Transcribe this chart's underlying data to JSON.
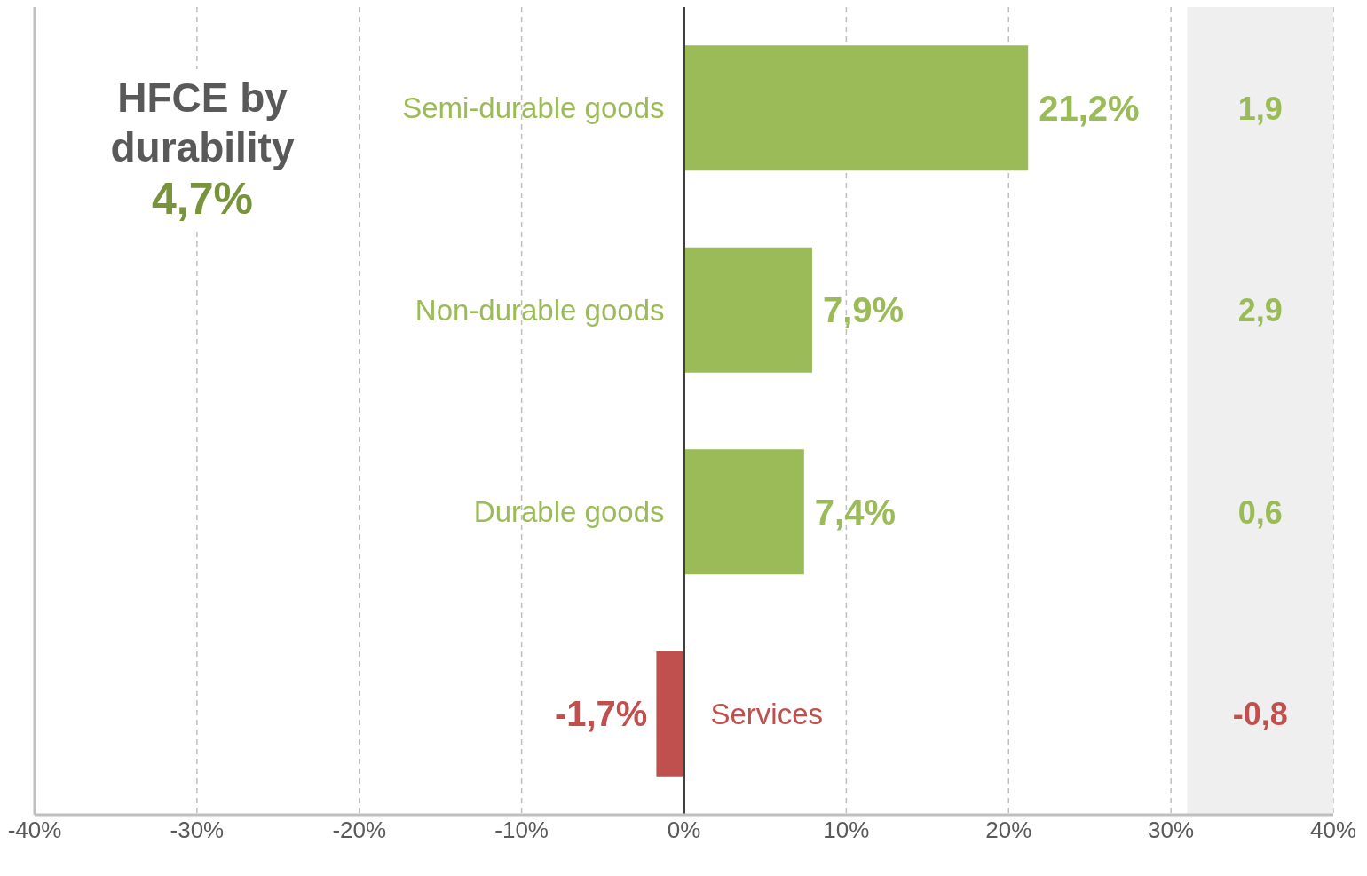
{
  "chart_data": {
    "type": "bar",
    "orientation": "horizontal",
    "title": "HFCE by durability",
    "subtitle": "4,7%",
    "categories": [
      "Semi-durable goods",
      "Non-durable goods",
      "Durable goods",
      "Services"
    ],
    "values": [
      21.2,
      7.9,
      7.4,
      -1.7
    ],
    "colors": [
      "#9bbb59",
      "#9bbb59",
      "#9bbb59",
      "#c0504d"
    ],
    "value_labels": [
      "21,2%",
      "7,9%",
      "7,4%",
      "-1,7%"
    ],
    "xlim": [
      -40,
      40
    ],
    "xticks": [
      {
        "value": -40,
        "label": "-40%"
      },
      {
        "value": -30,
        "label": "-30%"
      },
      {
        "value": -20,
        "label": "-20%"
      },
      {
        "value": -10,
        "label": "-10%"
      },
      {
        "value": 0,
        "label": "0%"
      },
      {
        "value": 10,
        "label": "10%"
      },
      {
        "value": 20,
        "label": "20%"
      },
      {
        "value": 30,
        "label": "30%"
      },
      {
        "value": 40,
        "label": "40%"
      }
    ],
    "grid": "x",
    "tick_labels": "x",
    "bands": [
      {
        "axis": "x",
        "from": 31,
        "to": 40,
        "color": "#efefef"
      }
    ],
    "annotations": [
      "1,9",
      "2,9",
      "0,6",
      "-0,8"
    ]
  }
}
